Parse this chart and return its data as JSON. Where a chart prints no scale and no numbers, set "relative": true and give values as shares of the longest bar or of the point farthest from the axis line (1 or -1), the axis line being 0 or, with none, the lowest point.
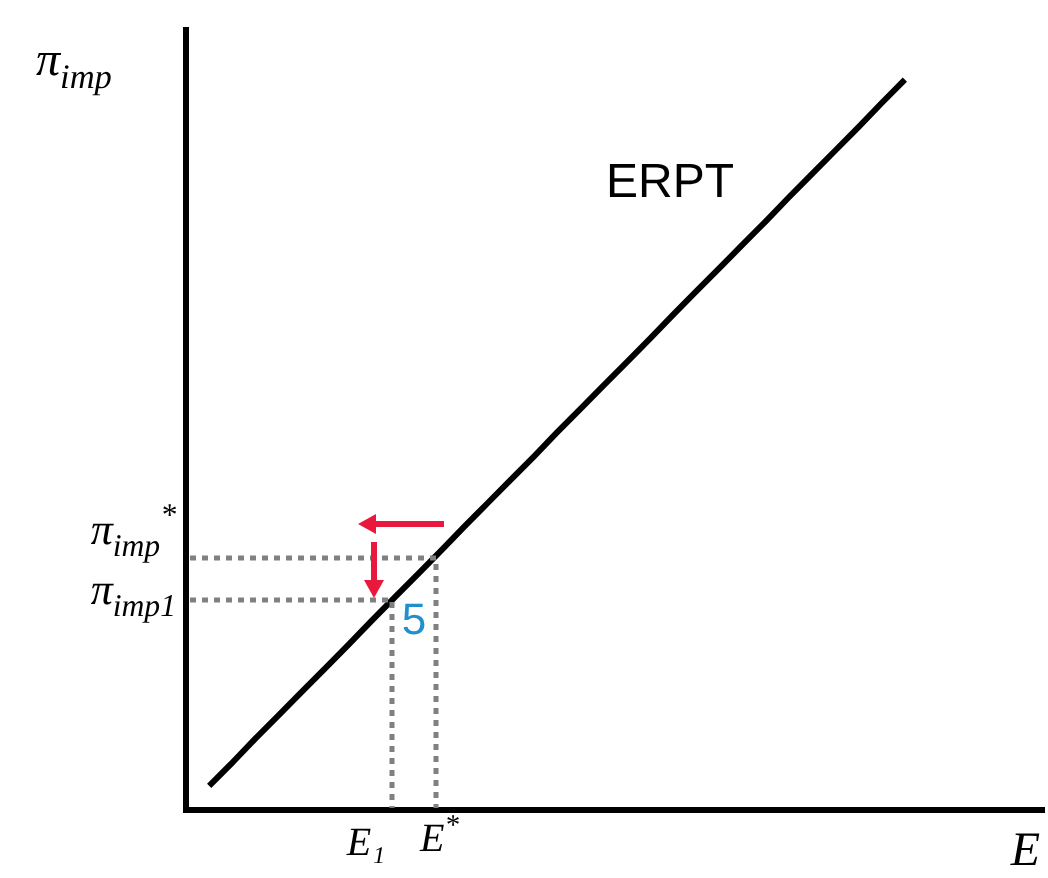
{
  "chart_data": {
    "type": "line",
    "relative": true,
    "xlabel": "E",
    "ylabel": "π$_{imp}$",
    "legend": false,
    "marker": "none",
    "categories": [
      null,
      null,
      null,
      null,
      null,
      null,
      null,
      null,
      null,
      null,
      null,
      null,
      null,
      null,
      null,
      null,
      null,
      null,
      null,
      null,
      null,
      null,
      null,
      null,
      null,
      null,
      null,
      null,
      null,
      null,
      null,
      null,
      null,
      null,
      null,
      null,
      null,
      null
    ],
    "series": [
      {
        "values": [
          null,
          0.033,
          0.065,
          0.098,
          0.13,
          0.162,
          0.194,
          0.226,
          0.259,
          0.291,
          0.323,
          0.355,
          0.388,
          0.42,
          0.452,
          0.484,
          0.517,
          0.549,
          0.581,
          0.613,
          0.645,
          0.678,
          0.71,
          0.742,
          0.774,
          0.806,
          0.839,
          0.871,
          0.903,
          0.935,
          0.968,
          1.0,
          null,
          null,
          null,
          null,
          null,
          null
        ],
        "color": "#000000",
        "line_style": "solid"
      }
    ],
    "annotations": [
      "ERPT",
      "5",
      "E₁",
      "E$^{*}$",
      "π$_{imp}$$^{*}$",
      "π$_{imp1}$"
    ]
  }
}
